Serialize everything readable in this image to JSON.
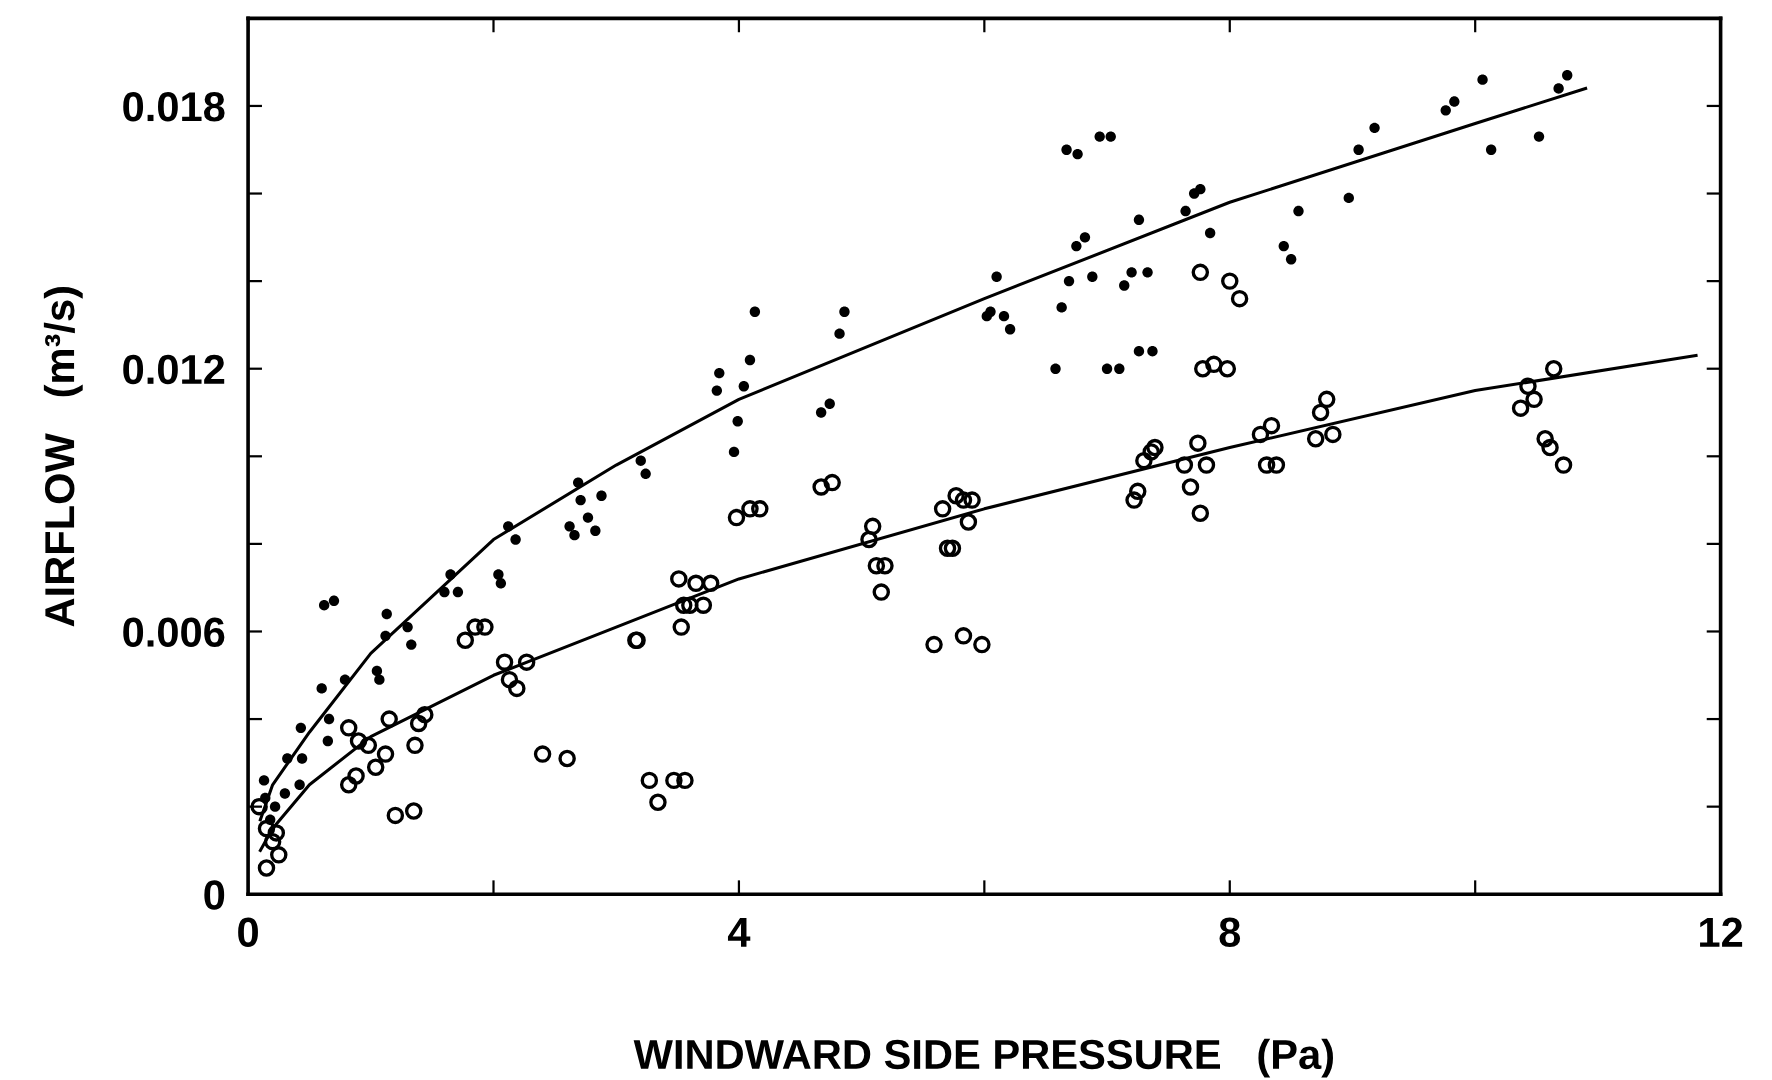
{
  "chart_data": {
    "type": "scatter",
    "xlabel": "WINDWARD SIDE PRESSURE   (Pa)",
    "ylabel": "AIRFLOW   (m³/s)",
    "xlim": [
      0,
      12
    ],
    "ylim": [
      0,
      0.02
    ],
    "xticks": [
      0,
      {
        "value": 2,
        "label": null
      },
      4,
      {
        "value": 6,
        "label": null
      },
      8,
      {
        "value": 10,
        "label": null
      },
      12
    ],
    "yticks": [
      0,
      {
        "value": 0.002,
        "label": null
      },
      {
        "value": 0.004,
        "label": null
      },
      0.006,
      {
        "value": 0.008,
        "label": null
      },
      {
        "value": 0.01,
        "label": null
      },
      0.012,
      {
        "value": 0.014,
        "label": null
      },
      {
        "value": 0.016,
        "label": null
      },
      0.018
    ],
    "grid": false,
    "series": [
      {
        "color": "#000000",
        "marker": "circle",
        "x": [
          0.62,
          0.7,
          0.6,
          0.79,
          0.66,
          0.65,
          0.43,
          0.44,
          0.42,
          0.13,
          0.32,
          0.14,
          0.22,
          0.3,
          0.18,
          1.13,
          1.12,
          1.3,
          1.33,
          1.05,
          1.07,
          1.65,
          1.6,
          1.71,
          2.04,
          2.06,
          2.12,
          2.18,
          2.69,
          2.71,
          2.62,
          2.66,
          2.77,
          2.83,
          2.88,
          3.2,
          3.24,
          3.84,
          3.82,
          4.04,
          4.09,
          3.99,
          3.96,
          4.13,
          4.86,
          4.82,
          4.67,
          4.74,
          6.1,
          6.02,
          6.05,
          6.16,
          6.21,
          6.67,
          6.76,
          6.94,
          7.03,
          6.75,
          6.82,
          6.69,
          6.88,
          6.63,
          6.58,
          7.0,
          7.1,
          7.26,
          7.37,
          7.26,
          7.14,
          7.2,
          7.33,
          7.64,
          7.71,
          7.76,
          7.84,
          8.44,
          8.5,
          8.56,
          8.97,
          9.05,
          9.18,
          9.76,
          9.83,
          10.06,
          10.13,
          10.52,
          10.68,
          10.75
        ],
        "values": [
          0.0066,
          0.0067,
          0.0047,
          0.0049,
          0.004,
          0.0035,
          0.0038,
          0.0031,
          0.0025,
          0.0026,
          0.0031,
          0.0022,
          0.002,
          0.0023,
          0.0017,
          0.0064,
          0.0059,
          0.0061,
          0.0057,
          0.0051,
          0.0049,
          0.0073,
          0.0069,
          0.0069,
          0.0073,
          0.0071,
          0.0084,
          0.0081,
          0.0094,
          0.009,
          0.0084,
          0.0082,
          0.0086,
          0.0083,
          0.0091,
          0.0099,
          0.0096,
          0.0119,
          0.0115,
          0.0116,
          0.0122,
          0.0108,
          0.0101,
          0.0133,
          0.0133,
          0.0128,
          0.011,
          0.0112,
          0.0141,
          0.0132,
          0.0133,
          0.0132,
          0.0129,
          0.017,
          0.0169,
          0.0173,
          0.0173,
          0.0148,
          0.015,
          0.014,
          0.0141,
          0.0134,
          0.012,
          0.012,
          0.012,
          0.0124,
          0.0124,
          0.0154,
          0.0139,
          0.0142,
          0.0142,
          0.0156,
          0.016,
          0.0161,
          0.0151,
          0.0148,
          0.0145,
          0.0156,
          0.0159,
          0.017,
          0.0175,
          0.0179,
          0.0181,
          0.0186,
          0.017,
          0.0173,
          0.0184,
          0.0187
        ]
      },
      {
        "color": "#000000",
        "marker": "circle",
        "x": [
          0.82,
          0.9,
          0.98,
          1.12,
          1.04,
          0.88,
          0.82,
          1.15,
          1.35,
          1.2,
          1.44,
          1.39,
          1.36,
          1.77,
          1.85,
          1.93,
          2.09,
          2.13,
          2.19,
          2.27,
          2.4,
          2.6,
          3.16,
          3.17,
          3.27,
          3.34,
          3.47,
          3.56,
          3.51,
          3.65,
          3.77,
          3.55,
          3.6,
          3.71,
          3.53,
          3.98,
          4.09,
          4.17,
          0.09,
          0.15,
          0.2,
          0.25,
          0.15,
          0.23,
          4.67,
          4.76,
          5.06,
          5.09,
          5.12,
          5.19,
          5.16,
          5.59,
          5.83,
          5.98,
          5.66,
          5.77,
          5.83,
          5.9,
          5.87,
          5.7,
          5.74,
          7.22,
          7.25,
          7.3,
          7.36,
          7.39,
          7.63,
          7.68,
          7.81,
          7.74,
          7.76,
          7.76,
          8.0,
          8.08,
          7.78,
          7.87,
          7.98,
          8.3,
          8.38,
          8.25,
          8.34,
          8.7,
          8.84,
          8.74,
          8.79,
          10.37,
          10.48,
          10.43,
          10.64,
          10.57,
          10.61,
          10.72
        ],
        "values": [
          0.0038,
          0.0035,
          0.0034,
          0.0032,
          0.0029,
          0.0027,
          0.0025,
          0.004,
          0.0019,
          0.0018,
          0.0041,
          0.0039,
          0.0034,
          0.0058,
          0.0061,
          0.0061,
          0.0053,
          0.0049,
          0.0047,
          0.0053,
          0.0032,
          0.0031,
          0.0058,
          0.0058,
          0.0026,
          0.0021,
          0.0026,
          0.0026,
          0.0072,
          0.0071,
          0.0071,
          0.0066,
          0.0066,
          0.0066,
          0.0061,
          0.0086,
          0.0088,
          0.0088,
          0.002,
          0.0015,
          0.0012,
          0.0009,
          0.0006,
          0.0014,
          0.0093,
          0.0094,
          0.0081,
          0.0084,
          0.0075,
          0.0075,
          0.0069,
          0.0057,
          0.0059,
          0.0057,
          0.0088,
          0.0091,
          0.009,
          0.009,
          0.0085,
          0.0079,
          0.0079,
          0.009,
          0.0092,
          0.0099,
          0.0101,
          0.0102,
          0.0098,
          0.0093,
          0.0098,
          0.0103,
          0.0087,
          0.0142,
          0.014,
          0.0136,
          0.012,
          0.0121,
          0.012,
          0.0098,
          0.0098,
          0.0105,
          0.0107,
          0.0104,
          0.0105,
          0.011,
          0.0113,
          0.0111,
          0.0113,
          0.0116,
          0.012,
          0.0104,
          0.0102,
          0.0098
        ]
      },
      {
        "type": "line",
        "color": "#000000",
        "marker": "none",
        "line_style": "solid",
        "x": [
          0.1,
          0.2,
          0.5,
          1,
          2,
          3,
          4,
          6,
          8,
          10,
          10.9
        ],
        "values": [
          0.0017,
          0.0025,
          0.0037,
          0.0055,
          0.0081,
          0.0098,
          0.0113,
          0.0136,
          0.0158,
          0.0176,
          0.0184
        ]
      },
      {
        "type": "line",
        "color": "#000000",
        "marker": "none",
        "line_style": "solid",
        "x": [
          0.1,
          0.2,
          0.5,
          1,
          2,
          3,
          4,
          6,
          8,
          10,
          11.8
        ],
        "values": [
          0.001,
          0.0015,
          0.0025,
          0.0036,
          0.005,
          0.0061,
          0.0072,
          0.0088,
          0.0102,
          0.0115,
          0.0123
        ]
      }
    ]
  }
}
